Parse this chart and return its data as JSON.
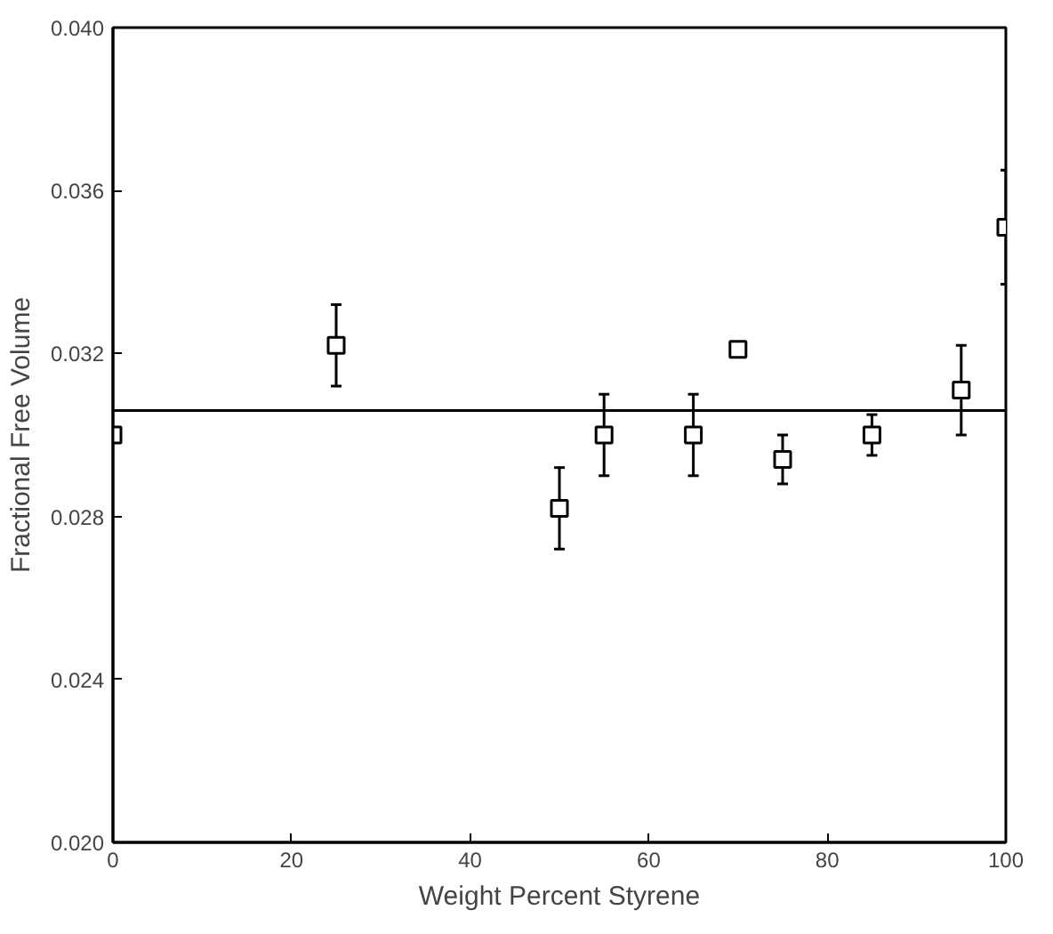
{
  "chart_data": {
    "type": "scatter",
    "xlabel": "Weight Percent Styrene",
    "ylabel": "Fractional Free Volume",
    "xlim": [
      0,
      100
    ],
    "ylim": [
      0.02,
      0.04
    ],
    "xticks": [
      0,
      20,
      40,
      60,
      80,
      100
    ],
    "yticks": [
      {
        "value": 0.02,
        "label": "0.020"
      },
      {
        "value": 0.024,
        "label": "0.024"
      },
      {
        "value": 0.028,
        "label": "0.028"
      },
      {
        "value": 0.032,
        "label": "0.032"
      },
      {
        "value": 0.036,
        "label": "0.036"
      },
      {
        "value": 0.04,
        "label": "0.040"
      }
    ],
    "grid": false,
    "series": [
      {
        "marker": "square",
        "color": "#000000",
        "x": [
          0,
          25,
          50,
          55,
          65,
          70,
          75,
          85,
          95,
          100
        ],
        "values": [
          0.03,
          0.0322,
          0.0282,
          0.03,
          0.03,
          0.0321,
          0.0294,
          0.03,
          0.0311,
          0.0351
        ],
        "errors": [
          null,
          0.001,
          0.001,
          0.001,
          0.001,
          null,
          0.0006,
          0.0005,
          0.0011,
          0.0014
        ]
      },
      {
        "type": "line",
        "color": "#000000",
        "x": [
          0,
          100
        ],
        "values": [
          0.0306,
          0.0306
        ],
        "line_style": "solid"
      }
    ]
  }
}
